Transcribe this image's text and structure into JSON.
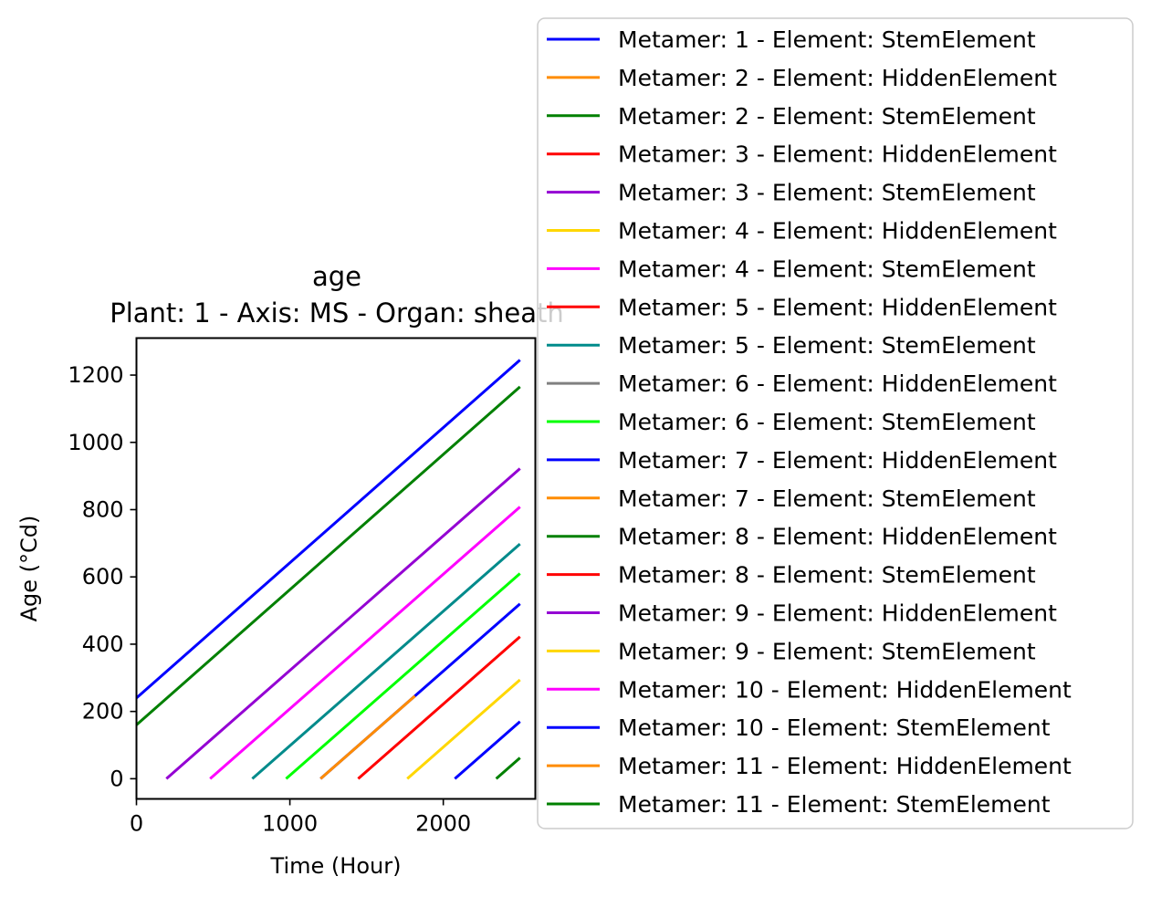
{
  "chart_data": {
    "type": "line",
    "title": "age",
    "subtitle": "Plant: 1 - Axis: MS - Organ: sheath",
    "xlabel": "Time (Hour)",
    "ylabel": "Age (°Cd)",
    "xlim": [
      0,
      2600
    ],
    "ylim": [
      -60,
      1310
    ],
    "xticks": [
      0,
      1000,
      2000
    ],
    "yticks": [
      0,
      200,
      400,
      600,
      800,
      1000,
      1200
    ],
    "grid": false,
    "legend_position": "right",
    "series": [
      {
        "name": "Metamer: 1 - Element: StemElement",
        "color": "#0000ff",
        "x": [
          0,
          2500
        ],
        "y": [
          240,
          1245
        ]
      },
      {
        "name": "Metamer: 2 - Element: HiddenElement",
        "color": "#ff8c00",
        "x": [],
        "y": []
      },
      {
        "name": "Metamer: 2 - Element: StemElement",
        "color": "#008000",
        "x": [
          0,
          2500
        ],
        "y": [
          160,
          1165
        ]
      },
      {
        "name": "Metamer: 3 - Element: HiddenElement",
        "color": "#ff0000",
        "x": [],
        "y": []
      },
      {
        "name": "Metamer: 3 - Element: StemElement",
        "color": "#9400d3",
        "x": [
          195,
          2500
        ],
        "y": [
          0,
          922
        ]
      },
      {
        "name": "Metamer: 4 - Element: HiddenElement",
        "color": "#ffd700",
        "x": [],
        "y": []
      },
      {
        "name": "Metamer: 4 - Element: StemElement",
        "color": "#ff00ff",
        "x": [
          480,
          2500
        ],
        "y": [
          0,
          808
        ]
      },
      {
        "name": "Metamer: 5 - Element: HiddenElement",
        "color": "#ff0000",
        "x": [],
        "y": []
      },
      {
        "name": "Metamer: 5 - Element: StemElement",
        "color": "#008b8b",
        "x": [
          755,
          2500
        ],
        "y": [
          0,
          698
        ]
      },
      {
        "name": "Metamer: 6 - Element: HiddenElement",
        "color": "#808080",
        "x": [],
        "y": []
      },
      {
        "name": "Metamer: 6 - Element: StemElement",
        "color": "#00ff00",
        "x": [
          975,
          2500
        ],
        "y": [
          0,
          610
        ]
      },
      {
        "name": "Metamer: 7 - Element: HiddenElement",
        "color": "#0000ff",
        "x": [
          1200,
          2500
        ],
        "y": [
          0,
          520
        ]
      },
      {
        "name": "Metamer: 7 - Element: StemElement",
        "color": "#ff8c00",
        "x": [
          1200,
          1815
        ],
        "y": [
          0,
          246
        ]
      },
      {
        "name": "Metamer: 8 - Element: HiddenElement",
        "color": "#008000",
        "x": [],
        "y": []
      },
      {
        "name": "Metamer: 8 - Element: StemElement",
        "color": "#ff0000",
        "x": [
          1445,
          2500
        ],
        "y": [
          0,
          422
        ]
      },
      {
        "name": "Metamer: 9 - Element: HiddenElement",
        "color": "#9400d3",
        "x": [],
        "y": []
      },
      {
        "name": "Metamer: 9 - Element: StemElement",
        "color": "#ffd700",
        "x": [
          1765,
          2500
        ],
        "y": [
          0,
          294
        ]
      },
      {
        "name": "Metamer: 10 - Element: HiddenElement",
        "color": "#ff00ff",
        "x": [],
        "y": []
      },
      {
        "name": "Metamer: 10 - Element: StemElement",
        "color": "#0000ff",
        "x": [
          2075,
          2500
        ],
        "y": [
          0,
          170
        ]
      },
      {
        "name": "Metamer: 11 - Element: HiddenElement",
        "color": "#ff8c00",
        "x": [],
        "y": []
      },
      {
        "name": "Metamer: 11 - Element: StemElement",
        "color": "#008000",
        "x": [
          2345,
          2500
        ],
        "y": [
          0,
          62
        ]
      }
    ]
  }
}
